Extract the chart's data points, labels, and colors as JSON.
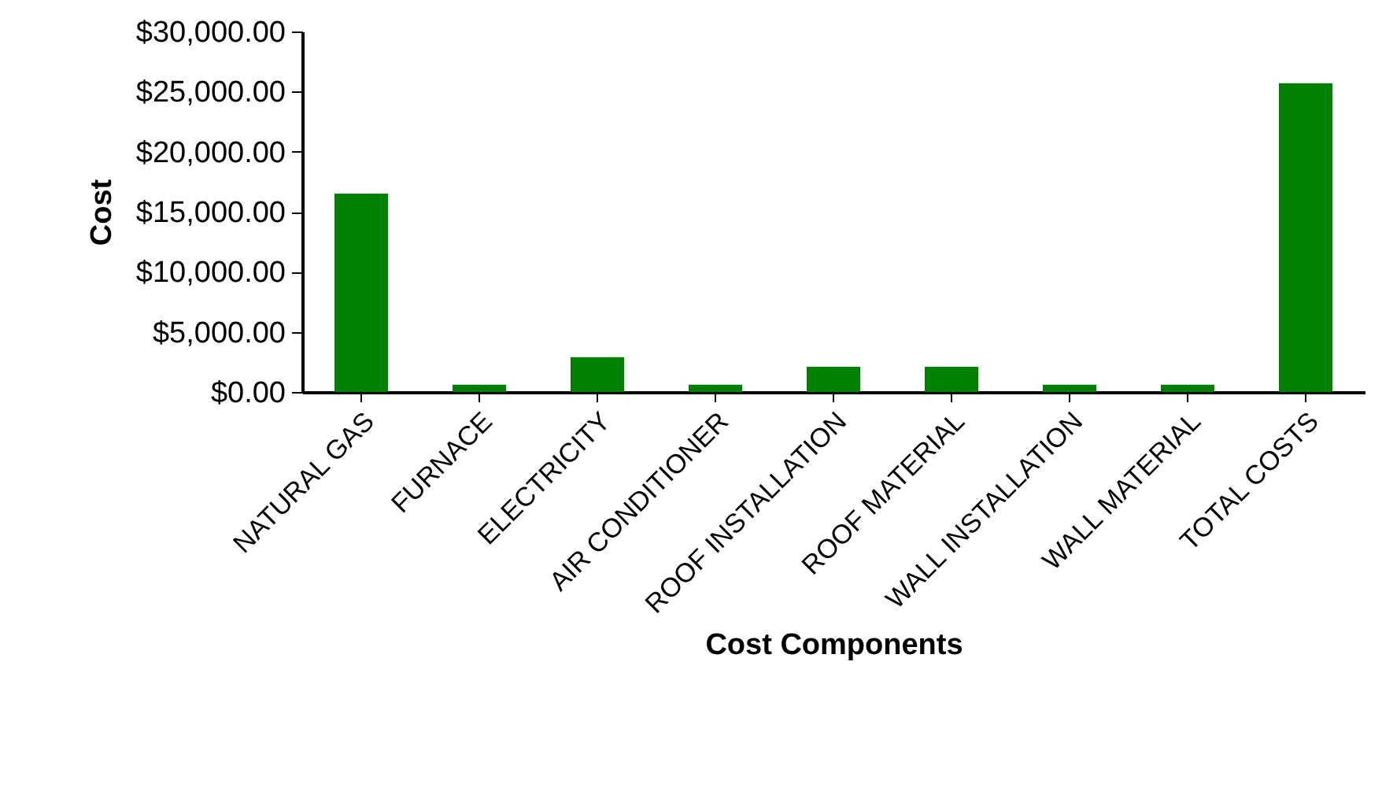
{
  "chart_data": {
    "type": "bar",
    "xlabel": "Cost Components",
    "ylabel": "Cost",
    "categories": [
      "NATURAL GAS",
      "FURNACE",
      "ELECTRICITY",
      "AIR CONDITIONER",
      "ROOF INSTALLATION",
      "ROOF MATERIAL",
      "WALL INSTALLATION",
      "WALL MATERIAL",
      "TOTAL COSTS"
    ],
    "values": [
      16500,
      600,
      2900,
      600,
      2100,
      2100,
      600,
      600,
      25700
    ],
    "color": "#008000",
    "ylim": [
      0,
      30000
    ],
    "yticks": [
      {
        "value": 0,
        "label": "$0.00"
      },
      {
        "value": 5000,
        "label": "$5,000.00"
      },
      {
        "value": 10000,
        "label": "$10,000.00"
      },
      {
        "value": 15000,
        "label": "$15,000.00"
      },
      {
        "value": 20000,
        "label": "$20,000.00"
      },
      {
        "value": 25000,
        "label": "$25,000.00"
      },
      {
        "value": 30000,
        "label": "$30,000.00"
      }
    ],
    "grid": false
  }
}
